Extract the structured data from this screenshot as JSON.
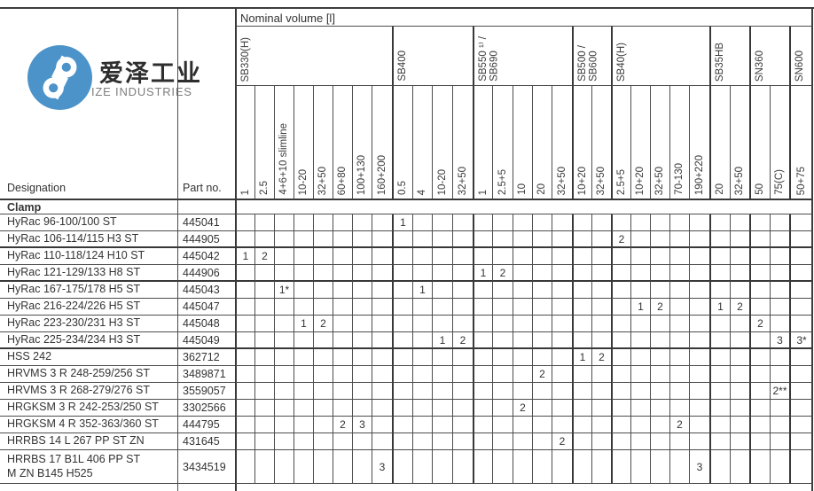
{
  "logo": {
    "chinese": "爱泽工业",
    "english": "IZE INDUSTRIES",
    "brand_blue": "#4b93c9"
  },
  "header": {
    "nominal_volume": "Nominal volume [l]",
    "designation": "Designation",
    "part_no": "Part no.",
    "section": "Clamp"
  },
  "groups": [
    {
      "id": "sb330h",
      "label": "SB330(H)",
      "cols": [
        "1",
        "2.5",
        "4+6+10 slimline",
        "10-20",
        "32+50",
        "60+80",
        "100+130",
        "160+200"
      ]
    },
    {
      "id": "sb400",
      "label": "SB400",
      "cols": [
        "0.5",
        "4",
        "10-20",
        "32+50"
      ]
    },
    {
      "id": "sb550-sb690",
      "label": "SB550 ¹⁾ /\nSB690",
      "cols": [
        "1",
        "2.5+5",
        "10",
        "20",
        "32+50"
      ]
    },
    {
      "id": "sb500-sb600",
      "label": "SB500 /\nSB600",
      "cols": [
        "10+20",
        "32+50"
      ]
    },
    {
      "id": "sb40h",
      "label": "SB40(H)",
      "cols": [
        "2.5+5",
        "10+20",
        "32+50",
        "70-130",
        "190+220"
      ]
    },
    {
      "id": "sb35hb",
      "label": "SB35HB",
      "cols": [
        "20",
        "32+50"
      ]
    },
    {
      "id": "sn360",
      "label": "SN360",
      "cols": [
        "50",
        "75(C)"
      ]
    },
    {
      "id": "sn600",
      "label": "SN600",
      "cols": [
        "50+75"
      ]
    }
  ],
  "rows": [
    {
      "designation": "HyRac 96-100/100 ST",
      "part": "445041",
      "cells": {
        "9": "1"
      }
    },
    {
      "designation": "HyRac 106-114/115 H3 ST",
      "part": "444905",
      "cells": {
        "20": "2"
      }
    },
    {
      "designation": "HyRac 110-118/124 H10 ST",
      "part": "445042",
      "cells": {
        "1": "1",
        "2": "2"
      }
    },
    {
      "designation": "HyRac 121-129/133 H8 ST",
      "part": "444906",
      "cells": {
        "13": "1",
        "14": "2"
      }
    },
    {
      "designation": "HyRac 167-175/178 H5 ST",
      "part": "445043",
      "cells": {
        "3": "1*",
        "10": "1"
      }
    },
    {
      "designation": "HyRac 216-224/226 H5 ST",
      "part": "445047",
      "cells": {
        "21": "1",
        "22": "2",
        "25": "1",
        "26": "2"
      }
    },
    {
      "designation": "HyRac 223-230/231 H3 ST",
      "part": "445048",
      "cells": {
        "4": "1",
        "5": "2",
        "27": "2"
      }
    },
    {
      "designation": "HyRac 225-234/234 H3 ST",
      "part": "445049",
      "cells": {
        "11": "1",
        "12": "2",
        "28": "3",
        "29": "3*"
      }
    },
    {
      "designation": "HSS 242",
      "part": "362712",
      "cells": {
        "18": "1",
        "19": "2"
      }
    },
    {
      "designation": "HRVMS 3 R 248-259/256 ST",
      "part": "3489871",
      "cells": {
        "16": "2"
      }
    },
    {
      "designation": "HRVMS 3 R 268-279/276 ST",
      "part": "3559057",
      "cells": {
        "28": "2**"
      }
    },
    {
      "designation": "HRGKSM 3 R 242-253/250 ST",
      "part": "3302566",
      "cells": {
        "15": "2"
      }
    },
    {
      "designation": "HRGKSM 4 R 352-363/360 ST",
      "part": "444795",
      "cells": {
        "6": "2",
        "7": "3",
        "23": "2"
      }
    },
    {
      "designation": "HRRBS 14 L 267 PP ST ZN",
      "part": "431645",
      "cells": {
        "17": "2"
      }
    },
    {
      "designation": "HRRBS 17 B1L 406 PP ST\nM ZN B145 H525",
      "part": "3434519",
      "cells": {
        "8": "3",
        "24": "3"
      }
    }
  ]
}
